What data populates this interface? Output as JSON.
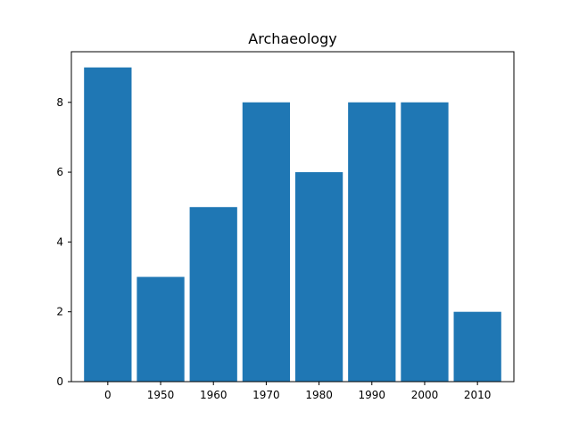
{
  "chart_data": {
    "type": "bar",
    "title": "Archaeology",
    "xlabel": "",
    "ylabel": "",
    "categories": [
      "0",
      "1950",
      "1960",
      "1970",
      "1980",
      "1990",
      "2000",
      "2010"
    ],
    "values": [
      9,
      3,
      5,
      8,
      6,
      8,
      8,
      2
    ],
    "ylim": [
      0,
      9.45
    ],
    "yticks": [
      "0",
      "2",
      "4",
      "6",
      "8"
    ],
    "bar_color": "#1f77b4",
    "grid": false,
    "legend": false
  }
}
